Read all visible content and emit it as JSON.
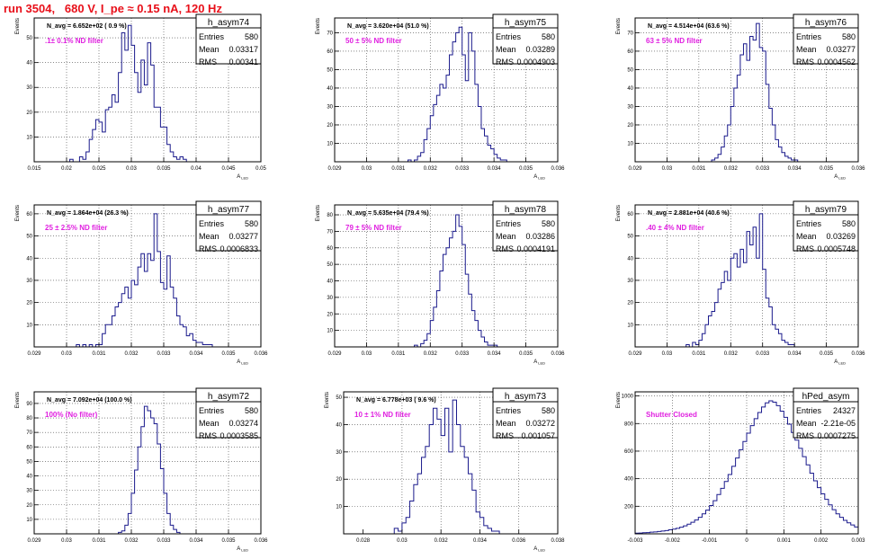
{
  "run_title": "run 3504,   680 V, I_pe ≈ 0.15 nA, 120 Hz",
  "chart_data": [
    {
      "type": "histogram",
      "name": "h_asym74",
      "navg_label": "N_avg = 6.652e+02 ( 0.9 %)",
      "filter_label": ".1± 0.1% ND filter",
      "stats": {
        "Entries": "580",
        "Mean": "0.03317",
        "RMS": "0.00341"
      },
      "ylabel": "Events",
      "xlabel": "A_LED",
      "xlim": [
        0.015,
        0.05
      ],
      "ylim": [
        0,
        58
      ],
      "xticks": [
        0.015,
        0.02,
        0.025,
        0.03,
        0.035,
        0.04,
        0.045,
        0.05
      ],
      "xtick_labels": [
        "0.015",
        "0.02",
        "0.025",
        "0.03",
        "0.035",
        "0.04",
        "0.045",
        "0.05"
      ],
      "yticks": [
        10,
        20,
        30,
        40,
        50
      ],
      "ytick_labels": [
        "10",
        "20",
        "30",
        "40",
        "50"
      ],
      "bin_start": 0.0205,
      "bin_width": 0.0005,
      "counts": [
        1,
        0,
        0,
        2,
        1,
        4,
        9,
        13,
        17,
        16,
        12,
        21,
        22,
        27,
        24,
        36,
        52,
        45,
        55,
        47,
        36,
        28,
        41,
        31,
        48,
        39,
        22,
        22,
        14,
        14,
        7,
        4,
        2,
        1,
        2,
        1
      ]
    },
    {
      "type": "histogram",
      "name": "h_asym75",
      "navg_label": "N_avg = 3.620e+04 (51.0 %)",
      "filter_label": "50 ± 5% ND filter",
      "stats": {
        "Entries": "580",
        "Mean": "0.03289",
        "RMS": "0.0004903"
      },
      "ylabel": "Events",
      "xlabel": "A_LED",
      "xlim": [
        0.029,
        0.036
      ],
      "ylim": [
        0,
        78
      ],
      "xticks": [
        0.029,
        0.03,
        0.031,
        0.032,
        0.033,
        0.034,
        0.035,
        0.036
      ],
      "xtick_labels": [
        "0.029",
        "0.03",
        "0.031",
        "0.032",
        "0.033",
        "0.034",
        "0.035",
        "0.036"
      ],
      "yticks": [
        10,
        20,
        30,
        40,
        50,
        60,
        70
      ],
      "ytick_labels": [
        "10",
        "20",
        "30",
        "40",
        "50",
        "60",
        "70"
      ],
      "bin_start": 0.0313,
      "bin_width": 0.0001,
      "counts": [
        1,
        0,
        1,
        3,
        5,
        12,
        18,
        25,
        31,
        36,
        42,
        40,
        47,
        58,
        65,
        70,
        73,
        58,
        44,
        70,
        60,
        42,
        30,
        18,
        14,
        9,
        7,
        4,
        2,
        1,
        1
      ]
    },
    {
      "type": "histogram",
      "name": "h_asym76",
      "navg_label": "N_avg = 4.514e+04 (63.6 %)",
      "filter_label": "63 ± 5% ND filter",
      "stats": {
        "Entries": "580",
        "Mean": "0.03277",
        "RMS": "0.0004562"
      },
      "ylabel": "Events",
      "xlabel": "A_LED",
      "xlim": [
        0.029,
        0.036
      ],
      "ylim": [
        0,
        78
      ],
      "xticks": [
        0.029,
        0.03,
        0.031,
        0.032,
        0.033,
        0.034,
        0.035,
        0.036
      ],
      "xtick_labels": [
        "0.029",
        "0.03",
        "0.031",
        "0.032",
        "0.033",
        "0.034",
        "0.035",
        "0.036"
      ],
      "yticks": [
        10,
        20,
        30,
        40,
        50,
        60,
        70
      ],
      "ytick_labels": [
        "10",
        "20",
        "30",
        "40",
        "50",
        "60",
        "70"
      ],
      "bin_start": 0.0314,
      "bin_width": 0.0001,
      "counts": [
        1,
        2,
        4,
        8,
        14,
        20,
        30,
        40,
        47,
        58,
        64,
        55,
        68,
        66,
        75,
        62,
        60,
        42,
        29,
        20,
        12,
        8,
        5,
        3,
        2,
        1,
        1
      ]
    },
    {
      "type": "histogram",
      "name": "h_asym77",
      "navg_label": "N_avg = 1.864e+04 (26.3 %)",
      "filter_label": "25 ± 2.5% ND filter",
      "stats": {
        "Entries": "580",
        "Mean": "0.03277",
        "RMS": "0.0006833"
      },
      "ylabel": "Events",
      "xlabel": "A_LED",
      "xlim": [
        0.029,
        0.036
      ],
      "ylim": [
        0,
        64
      ],
      "xticks": [
        0.029,
        0.03,
        0.031,
        0.032,
        0.033,
        0.034,
        0.035,
        0.036
      ],
      "xtick_labels": [
        "0.029",
        "0.03",
        "0.031",
        "0.032",
        "0.033",
        "0.034",
        "0.035",
        "0.036"
      ],
      "yticks": [
        10,
        20,
        30,
        40,
        50,
        60
      ],
      "ytick_labels": [
        "10",
        "20",
        "30",
        "40",
        "50",
        "60"
      ],
      "bin_start": 0.0303,
      "bin_width": 0.0001,
      "counts": [
        1,
        0,
        1,
        0,
        1,
        0,
        1,
        1,
        6,
        10,
        10,
        14,
        18,
        20,
        24,
        27,
        22,
        30,
        28,
        36,
        42,
        34,
        42,
        39,
        60,
        43,
        29,
        26,
        41,
        27,
        22,
        14,
        10,
        9,
        5,
        6,
        3,
        2,
        2,
        1,
        1,
        1
      ]
    },
    {
      "type": "histogram",
      "name": "h_asym78",
      "navg_label": "N_avg = 5.635e+04 (79.4 %)",
      "filter_label": "79 ± 5% ND filter",
      "stats": {
        "Entries": "580",
        "Mean": "0.03286",
        "RMS": "0.0004191"
      },
      "ylabel": "Events",
      "xlabel": "A_LED",
      "xlim": [
        0.029,
        0.036
      ],
      "ylim": [
        0,
        86
      ],
      "xticks": [
        0.029,
        0.03,
        0.031,
        0.032,
        0.033,
        0.034,
        0.035,
        0.036
      ],
      "xtick_labels": [
        "0.029",
        "0.03",
        "0.031",
        "0.032",
        "0.033",
        "0.034",
        "0.035",
        "0.036"
      ],
      "yticks": [
        10,
        20,
        30,
        40,
        50,
        60,
        70,
        80
      ],
      "ytick_labels": [
        "10",
        "20",
        "30",
        "40",
        "50",
        "60",
        "70",
        "80"
      ],
      "bin_start": 0.0315,
      "bin_width": 0.0001,
      "counts": [
        1,
        0,
        2,
        4,
        8,
        16,
        24,
        34,
        46,
        56,
        60,
        66,
        70,
        80,
        73,
        62,
        44,
        32,
        22,
        16,
        10,
        6,
        3,
        1,
        1,
        1
      ]
    },
    {
      "type": "histogram",
      "name": "h_asym79",
      "navg_label": "N_avg = 2.881e+04 (40.6 %)",
      "filter_label": ".40 ± 4% ND filter",
      "stats": {
        "Entries": "580",
        "Mean": "0.03269",
        "RMS": "0.0005748"
      },
      "ylabel": "Events",
      "xlabel": "A_LED",
      "xlim": [
        0.029,
        0.036
      ],
      "ylim": [
        0,
        64
      ],
      "xticks": [
        0.029,
        0.03,
        0.031,
        0.032,
        0.033,
        0.034,
        0.035,
        0.036
      ],
      "xtick_labels": [
        "0.029",
        "0.03",
        "0.031",
        "0.032",
        "0.033",
        "0.034",
        "0.035",
        "0.036"
      ],
      "yticks": [
        10,
        20,
        30,
        40,
        50,
        60
      ],
      "ytick_labels": [
        "10",
        "20",
        "30",
        "40",
        "50",
        "60"
      ],
      "bin_start": 0.0306,
      "bin_width": 0.0001,
      "counts": [
        1,
        0,
        2,
        1,
        3,
        6,
        10,
        14,
        16,
        20,
        26,
        29,
        34,
        30,
        40,
        42,
        36,
        44,
        38,
        52,
        46,
        54,
        40,
        60,
        35,
        22,
        18,
        10,
        8,
        6,
        3,
        2,
        1,
        1
      ]
    },
    {
      "type": "histogram",
      "name": "h_asym72",
      "navg_label": "N_avg = 7.092e+04 (100.0 %)",
      "filter_label": "100% (No filter)",
      "stats": {
        "Entries": "580",
        "Mean": "0.03274",
        "RMS": "0.0003585"
      },
      "ylabel": "Events",
      "xlabel": "A_LED",
      "xlim": [
        0.029,
        0.036
      ],
      "ylim": [
        0,
        98
      ],
      "xticks": [
        0.029,
        0.03,
        0.031,
        0.032,
        0.033,
        0.034,
        0.035,
        0.036
      ],
      "xtick_labels": [
        "0.029",
        "0.03",
        "0.031",
        "0.032",
        "0.033",
        "0.034",
        "0.035",
        "0.036"
      ],
      "yticks": [
        10,
        20,
        30,
        40,
        50,
        60,
        70,
        80,
        90
      ],
      "ytick_labels": [
        "10",
        "20",
        "30",
        "40",
        "50",
        "60",
        "70",
        "80",
        "90"
      ],
      "bin_start": 0.0316,
      "bin_width": 0.0001,
      "counts": [
        1,
        2,
        6,
        14,
        28,
        44,
        60,
        74,
        88,
        85,
        80,
        76,
        62,
        45,
        28,
        14,
        6,
        3,
        1
      ]
    },
    {
      "type": "histogram",
      "name": "h_asym73",
      "navg_label": "N_avg = 6.778e+03 ( 9.6 %)",
      "filter_label": "10 ± 1% ND filter",
      "stats": {
        "Entries": "580",
        "Mean": "0.03272",
        "RMS": "0.001057"
      },
      "ylabel": "Events",
      "xlabel": "A_LED",
      "xlim": [
        0.027,
        0.038
      ],
      "ylim": [
        0,
        52
      ],
      "xticks": [
        0.028,
        0.03,
        0.032,
        0.034,
        0.036,
        0.038
      ],
      "xtick_labels": [
        "0.028",
        "0.03",
        "0.032",
        "0.034",
        "0.036",
        "0.038"
      ],
      "yticks": [
        10,
        20,
        30,
        40,
        50
      ],
      "ytick_labels": [
        "10",
        "20",
        "30",
        "40",
        "50"
      ],
      "bin_start": 0.0296,
      "bin_width": 0.0002,
      "counts": [
        2,
        1,
        4,
        6,
        12,
        18,
        22,
        28,
        32,
        40,
        46,
        42,
        36,
        46,
        30,
        49,
        40,
        32,
        28,
        22,
        16,
        8,
        6,
        3,
        2,
        1,
        1
      ]
    },
    {
      "type": "histogram",
      "name": "hPed_asym",
      "navg_label": "",
      "filter_label": "Shutter Closed",
      "stats": {
        "Entries": "24327",
        "Mean": "-2.21e-05",
        "RMS": "0.0007275"
      },
      "ylabel": "Events",
      "xlabel": "",
      "xlim": [
        -0.003,
        0.003
      ],
      "ylim": [
        0,
        1030
      ],
      "xticks": [
        -0.003,
        -0.002,
        -0.001,
        0,
        0.001,
        0.002,
        0.003
      ],
      "xtick_labels": [
        "-0.003",
        "-0.002",
        "-0.001",
        "0",
        "0.001",
        "0.002",
        "0.003"
      ],
      "yticks": [
        200,
        400,
        600,
        800,
        1000
      ],
      "ytick_labels": [
        "200",
        "400",
        "600",
        "800",
        "1000"
      ],
      "bin_start": -0.003,
      "bin_width": 0.0001,
      "counts": [
        5,
        6,
        8,
        9,
        12,
        14,
        17,
        20,
        24,
        29,
        34,
        40,
        48,
        58,
        70,
        84,
        100,
        120,
        145,
        172,
        205,
        240,
        285,
        330,
        380,
        430,
        490,
        550,
        610,
        670,
        730,
        785,
        835,
        880,
        920,
        950,
        965,
        955,
        930,
        890,
        845,
        795,
        735,
        680,
        620,
        560,
        500,
        440,
        385,
        335,
        290,
        250,
        210,
        175,
        145,
        120,
        98,
        80,
        64,
        50
      ]
    }
  ]
}
